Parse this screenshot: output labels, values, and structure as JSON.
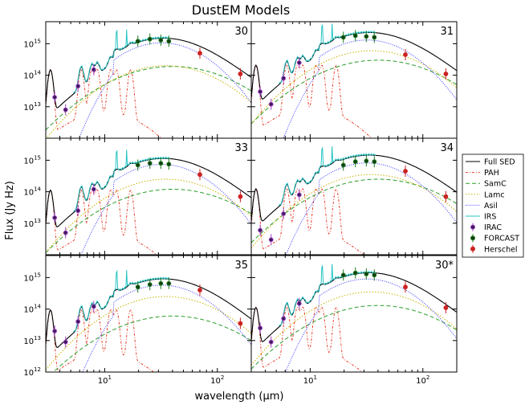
{
  "figure": {
    "title": "DustEM Models",
    "xlabel": "wavelength (μm)",
    "ylabel": "Flux (Jy Hz)"
  },
  "colors": {
    "full": "#000000",
    "pah": "#e8402c",
    "samc": "#2a9d2a",
    "lamc": "#c8b400",
    "asil": "#3a3aff",
    "irs": "#27c4c4",
    "irac": "#a040c0",
    "irac_center": "#3b1a5a",
    "forcast": "#1f7a1f",
    "forcast_center": "#123d12",
    "herschel": "#cc2222"
  },
  "chart_data": [
    {
      "type": "line",
      "panel": "30",
      "label": "30",
      "xscale": "log",
      "yscale": "log",
      "xlim": [
        3,
        200
      ],
      "ylim": [
        1000000000000.0,
        5000000000000000.0
      ],
      "peak": 1300000000000000.0,
      "samc_peak": 190000000000000.0,
      "lamc_peak": 200000000000000.0,
      "pah_peak": 160000000000000.0,
      "irac": {
        "x": [
          3.6,
          4.5,
          5.8,
          8.0
        ],
        "y": [
          20000000000000.0,
          8000000000000.0,
          45000000000000.0,
          150000000000000.0
        ]
      },
      "forcast": {
        "x": [
          19.7,
          25.2,
          31.5,
          37.1
        ],
        "y": [
          1200000000000000.0,
          1400000000000000.0,
          1300000000000000.0,
          1200000000000000.0
        ]
      },
      "herschel": {
        "x": [
          70,
          160
        ],
        "y": [
          500000000000000.0,
          110000000000000.0
        ]
      }
    },
    {
      "type": "line",
      "panel": "31",
      "label": "31",
      "xscale": "log",
      "yscale": "log",
      "xlim": [
        3,
        200
      ],
      "ylim": [
        1000000000000.0,
        5000000000000000.0
      ],
      "peak": 1600000000000000.0,
      "samc_peak": 300000000000000.0,
      "lamc_peak": 600000000000000.0,
      "pah_peak": 220000000000000.0,
      "irac": {
        "x": [
          3.6,
          4.5,
          5.8,
          8.0
        ],
        "y": [
          30000000000000.0,
          12000000000000.0,
          80000000000000.0,
          250000000000000.0
        ]
      },
      "forcast": {
        "x": [
          19.7,
          25.2,
          31.5,
          37.1
        ],
        "y": [
          1600000000000000.0,
          1800000000000000.0,
          1700000000000000.0,
          1600000000000000.0
        ]
      },
      "herschel": {
        "x": [
          70,
          160
        ],
        "y": [
          450000000000000.0,
          110000000000000.0
        ]
      }
    },
    {
      "type": "line",
      "panel": "33",
      "label": "33",
      "xscale": "log",
      "yscale": "log",
      "xlim": [
        3,
        200
      ],
      "ylim": [
        1000000000000.0,
        5000000000000000.0
      ],
      "peak": 900000000000000.0,
      "samc_peak": 120000000000000.0,
      "lamc_peak": 250000000000000.0,
      "pah_peak": 120000000000000.0,
      "irac": {
        "x": [
          3.6,
          4.5,
          5.8,
          8.0
        ],
        "y": [
          15000000000000.0,
          5000000000000.0,
          25000000000000.0,
          120000000000000.0
        ]
      },
      "forcast": {
        "x": [
          19.7,
          25.2,
          31.5,
          37.1
        ],
        "y": [
          700000000000000.0,
          800000000000000.0,
          800000000000000.0,
          750000000000000.0
        ]
      },
      "herschel": {
        "x": [
          70,
          160
        ],
        "y": [
          350000000000000.0,
          70000000000000.0
        ]
      }
    },
    {
      "type": "line",
      "panel": "34",
      "label": "34",
      "xscale": "log",
      "yscale": "log",
      "xlim": [
        3,
        200
      ],
      "ylim": [
        1000000000000.0,
        5000000000000000.0
      ],
      "peak": 1000000000000000.0,
      "samc_peak": 250000000000000.0,
      "lamc_peak": 350000000000000.0,
      "pah_peak": 130000000000000.0,
      "irac": {
        "x": [
          3.6,
          4.5,
          5.8,
          8.0
        ],
        "y": [
          6000000000000.0,
          3000000000000.0,
          20000000000000.0,
          80000000000000.0
        ]
      },
      "forcast": {
        "x": [
          19.7,
          25.2,
          31.5,
          37.1
        ],
        "y": [
          700000000000000.0,
          900000000000000.0,
          950000000000000.0,
          900000000000000.0
        ]
      },
      "herschel": {
        "x": [
          70,
          160
        ],
        "y": [
          450000000000000.0,
          70000000000000.0
        ]
      }
    },
    {
      "type": "line",
      "panel": "35",
      "label": "35",
      "xscale": "log",
      "yscale": "log",
      "xlim": [
        3,
        200
      ],
      "ylim": [
        1000000000000.0,
        5000000000000000.0
      ],
      "peak": 700000000000000.0,
      "samc_peak": 60000000000000.0,
      "lamc_peak": 250000000000000.0,
      "pah_peak": 100000000000000.0,
      "irac": {
        "x": [
          3.6,
          4.5,
          5.8,
          8.0
        ],
        "y": [
          20000000000000.0,
          9000000000000.0,
          40000000000000.0,
          120000000000000.0
        ]
      },
      "forcast": {
        "x": [
          19.7,
          25.2,
          31.5,
          37.1
        ],
        "y": [
          500000000000000.0,
          600000000000000.0,
          650000000000000.0,
          650000000000000.0
        ]
      },
      "herschel": {
        "x": [
          70,
          160
        ],
        "y": [
          400000000000000.0,
          35000000000000.0
        ]
      }
    },
    {
      "type": "line",
      "panel": "30*",
      "label": "30*",
      "xscale": "log",
      "yscale": "log",
      "xlim": [
        3,
        200
      ],
      "ylim": [
        1000000000000.0,
        5000000000000000.0
      ],
      "peak": 1100000000000000.0,
      "samc_peak": 130000000000000.0,
      "lamc_peak": 350000000000000.0,
      "pah_peak": 120000000000000.0,
      "irac": {
        "x": [
          3.6,
          4.5,
          5.8,
          8.0
        ],
        "y": [
          25000000000000.0,
          9000000000000.0,
          50000000000000.0,
          150000000000000.0
        ]
      },
      "forcast": {
        "x": [
          19.7,
          25.2,
          31.5,
          37.1
        ],
        "y": [
          1200000000000000.0,
          1400000000000000.0,
          1300000000000000.0,
          1200000000000000.0
        ]
      },
      "herschel": {
        "x": [
          70,
          160
        ],
        "y": [
          500000000000000.0,
          110000000000000.0
        ]
      }
    }
  ],
  "axes": {
    "y_ticks": [
      {
        "base": "10",
        "exp": "12"
      },
      {
        "base": "10",
        "exp": "13"
      },
      {
        "base": "10",
        "exp": "14"
      },
      {
        "base": "10",
        "exp": "15"
      }
    ],
    "x_ticks": [
      {
        "base": "10",
        "exp": "1"
      },
      {
        "base": "10",
        "exp": "2"
      }
    ]
  },
  "legend": {
    "placement": "right",
    "items": [
      {
        "label": "Full SED",
        "style": "line",
        "key": "full"
      },
      {
        "label": "PAH",
        "style": "dashdot",
        "key": "pah"
      },
      {
        "label": "SamC",
        "style": "dashed",
        "key": "samc"
      },
      {
        "label": "Lamc",
        "style": "dotted",
        "key": "lamc"
      },
      {
        "label": "Asil",
        "style": "dotted",
        "key": "asil"
      },
      {
        "label": "IRS",
        "style": "line",
        "key": "irs"
      },
      {
        "label": "IRAC",
        "style": "errpoint",
        "key": "irac"
      },
      {
        "label": "FORCAST",
        "style": "errpoint",
        "key": "forcast"
      },
      {
        "label": "Herschel",
        "style": "errpoint",
        "key": "herschel"
      }
    ]
  }
}
